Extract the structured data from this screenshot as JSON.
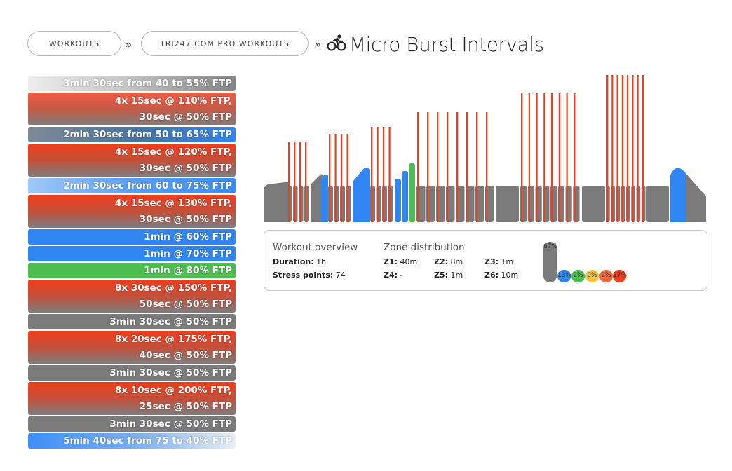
{
  "breadcrumb": {
    "items": [
      "WORKOUTS",
      "TRI247.COM PRO WORKOUTS"
    ],
    "separator": "»",
    "title": "Micro Burst Intervals"
  },
  "steps": [
    {
      "lines": [
        "3min 30sec from 40 to 55% FTP"
      ],
      "style": "g-warm"
    },
    {
      "lines": [
        "4x 15sec @ 110% FTP,",
        "30sec @ 50% FTP"
      ],
      "style": "red-int"
    },
    {
      "lines": [
        "2min 30sec from 50 to 65% FTP"
      ],
      "style": "blue-grad"
    },
    {
      "lines": [
        "4x 15sec @ 120% FTP,",
        "30sec @ 50% FTP"
      ],
      "style": "red-int2"
    },
    {
      "lines": [
        "2min 30sec from 60 to 75% FTP"
      ],
      "style": "blue-grad2"
    },
    {
      "lines": [
        "4x 15sec @ 130% FTP,",
        "30sec @ 50% FTP"
      ],
      "style": "red-int2"
    },
    {
      "lines": [
        "1min @ 60% FTP"
      ],
      "style": "blue"
    },
    {
      "lines": [
        "1min @ 70% FTP"
      ],
      "style": "blue"
    },
    {
      "lines": [
        "1min @ 80% FTP"
      ],
      "style": "green"
    },
    {
      "lines": [
        "8x 30sec @ 150% FTP,",
        "50sec @ 50% FTP"
      ],
      "style": "red-int2"
    },
    {
      "lines": [
        "3min 30sec @ 50% FTP"
      ],
      "style": "grey"
    },
    {
      "lines": [
        "8x 20sec @ 175% FTP,",
        "40sec @ 50% FTP"
      ],
      "style": "red-int2"
    },
    {
      "lines": [
        "3min 30sec @ 50% FTP"
      ],
      "style": "grey"
    },
    {
      "lines": [
        "8x 10sec @ 200% FTP,",
        "25sec @ 50% FTP"
      ],
      "style": "red-int2"
    },
    {
      "lines": [
        "3min 30sec @ 50% FTP"
      ],
      "style": "grey"
    },
    {
      "lines": [
        "5min 40sec from 75 to 40% FTP"
      ],
      "style": "g-cool"
    }
  ],
  "overview": {
    "heading": "Workout overview",
    "duration_label": "Duration:",
    "duration_value": "1h",
    "stress_label": "Stress points:",
    "stress_value": "74"
  },
  "zones": {
    "heading": "Zone distribution",
    "items": [
      {
        "label": "Z1:",
        "value": "40m"
      },
      {
        "label": "Z2:",
        "value": "8m"
      },
      {
        "label": "Z3:",
        "value": "1m"
      },
      {
        "label": "Z4:",
        "value": "-"
      },
      {
        "label": "Z5:",
        "value": "1m"
      },
      {
        "label": "Z6:",
        "value": "10m"
      }
    ],
    "pills": [
      {
        "label": "67%",
        "percent": 67,
        "color": "#7b7b7b"
      },
      {
        "label": "13%",
        "percent": 13,
        "color": "#2f86f2"
      },
      {
        "label": "2%",
        "percent": 2,
        "color": "#4cbe4f"
      },
      {
        "label": "0%",
        "percent": 0,
        "color": "#f5c23a"
      },
      {
        "label": "2%",
        "percent": 2,
        "color": "#f26a3a"
      },
      {
        "label": "17%",
        "percent": 17,
        "color": "#f23d1c"
      }
    ]
  },
  "colors": {
    "z1": "#7b7b7b",
    "z2": "#2f86f2",
    "z3": "#4cbe4f",
    "z4": "#f5c23a",
    "z5": "#f26a3a",
    "z6": "#f23d1c"
  },
  "icons": {
    "title_icon": "cyclist-icon"
  }
}
